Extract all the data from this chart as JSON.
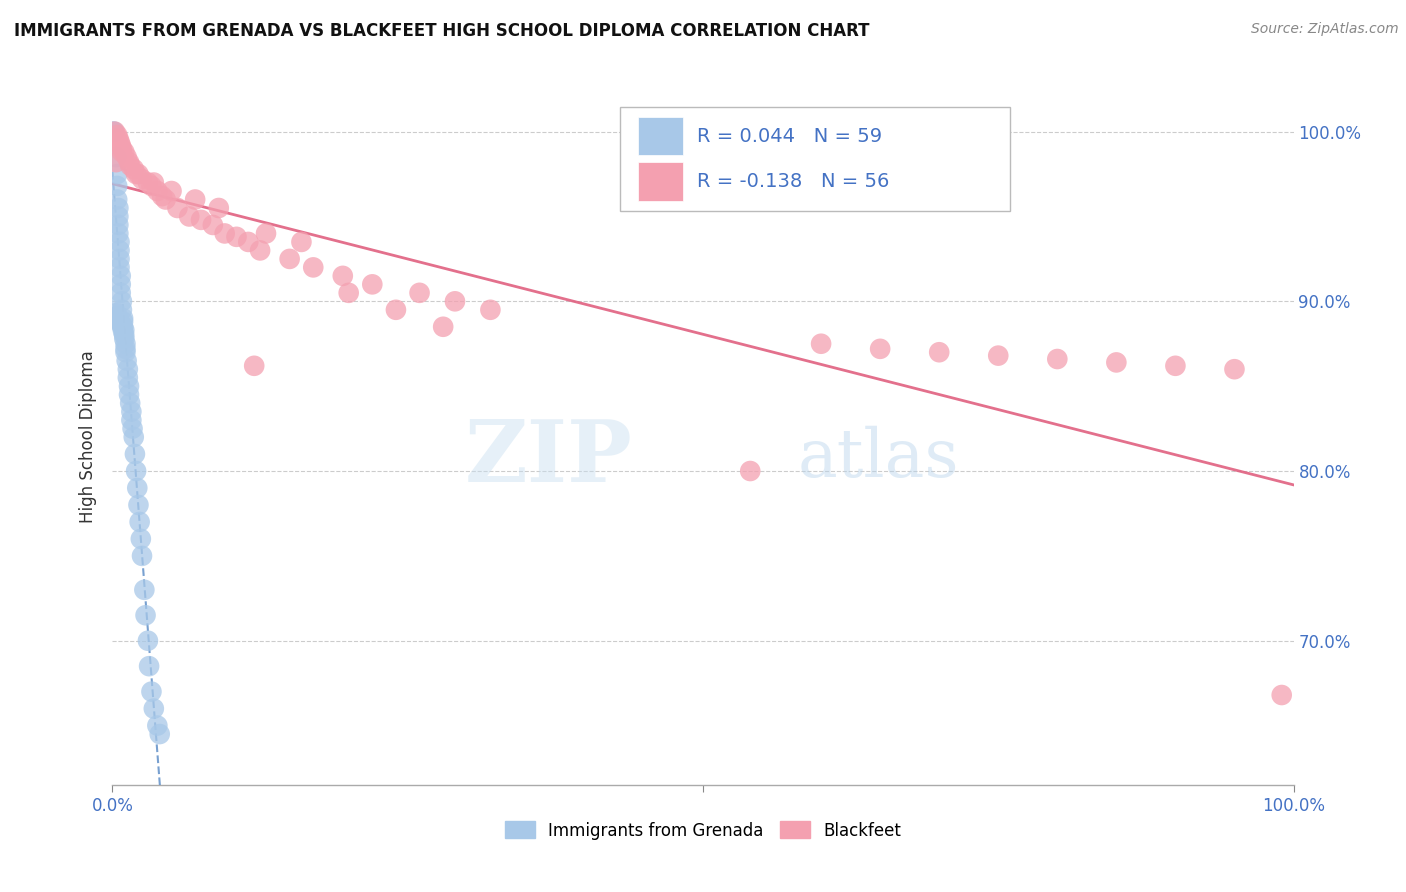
{
  "title": "IMMIGRANTS FROM GRENADA VS BLACKFEET HIGH SCHOOL DIPLOMA CORRELATION CHART",
  "source_text": "Source: ZipAtlas.com",
  "ylabel": "High School Diploma",
  "legend_blue_label": "Immigrants from Grenada",
  "legend_pink_label": "Blackfeet",
  "r_blue": 0.044,
  "n_blue": 59,
  "r_pink": -0.138,
  "n_pink": 56,
  "blue_color": "#a8c8e8",
  "pink_color": "#f4a0b0",
  "blue_line_color": "#6090c8",
  "pink_line_color": "#e06080",
  "watermark_color": "#d0e8f5",
  "blue_x": [
    0.001,
    0.001,
    0.003,
    0.004,
    0.004,
    0.004,
    0.005,
    0.005,
    0.005,
    0.005,
    0.006,
    0.006,
    0.006,
    0.006,
    0.007,
    0.007,
    0.007,
    0.008,
    0.008,
    0.009,
    0.009,
    0.009,
    0.009,
    0.01,
    0.01,
    0.011,
    0.011,
    0.011,
    0.012,
    0.013,
    0.013,
    0.014,
    0.014,
    0.015,
    0.016,
    0.016,
    0.017,
    0.018,
    0.019,
    0.02,
    0.021,
    0.022,
    0.023,
    0.024,
    0.025,
    0.027,
    0.028,
    0.03,
    0.031,
    0.033,
    0.035,
    0.038,
    0.04,
    0.003,
    0.004,
    0.005,
    0.007,
    0.008,
    0.01
  ],
  "blue_y": [
    1.0,
    1.0,
    0.985,
    0.975,
    0.968,
    0.96,
    0.955,
    0.95,
    0.945,
    0.94,
    0.935,
    0.93,
    0.925,
    0.92,
    0.915,
    0.91,
    0.905,
    0.9,
    0.895,
    0.89,
    0.888,
    0.885,
    0.882,
    0.88,
    0.878,
    0.875,
    0.872,
    0.87,
    0.865,
    0.86,
    0.855,
    0.85,
    0.845,
    0.84,
    0.835,
    0.83,
    0.825,
    0.82,
    0.81,
    0.8,
    0.79,
    0.78,
    0.77,
    0.76,
    0.75,
    0.73,
    0.715,
    0.7,
    0.685,
    0.67,
    0.66,
    0.65,
    0.645,
    0.893,
    0.891,
    0.889,
    0.887,
    0.885,
    0.883
  ],
  "pink_x": [
    0.002,
    0.004,
    0.005,
    0.006,
    0.007,
    0.008,
    0.01,
    0.012,
    0.014,
    0.018,
    0.022,
    0.025,
    0.03,
    0.033,
    0.038,
    0.042,
    0.045,
    0.055,
    0.065,
    0.075,
    0.085,
    0.095,
    0.105,
    0.115,
    0.125,
    0.15,
    0.17,
    0.195,
    0.22,
    0.26,
    0.29,
    0.32,
    0.015,
    0.02,
    0.035,
    0.05,
    0.07,
    0.09,
    0.13,
    0.16,
    0.2,
    0.24,
    0.28,
    0.6,
    0.65,
    0.7,
    0.75,
    0.8,
    0.85,
    0.9,
    0.95,
    0.003,
    0.008,
    0.12,
    0.54,
    0.99
  ],
  "pink_y": [
    1.0,
    0.998,
    0.996,
    0.994,
    0.992,
    0.99,
    0.988,
    0.985,
    0.982,
    0.978,
    0.975,
    0.972,
    0.97,
    0.968,
    0.965,
    0.962,
    0.96,
    0.955,
    0.95,
    0.948,
    0.945,
    0.94,
    0.938,
    0.935,
    0.93,
    0.925,
    0.92,
    0.915,
    0.91,
    0.905,
    0.9,
    0.895,
    0.98,
    0.975,
    0.97,
    0.965,
    0.96,
    0.955,
    0.94,
    0.935,
    0.905,
    0.895,
    0.885,
    0.875,
    0.872,
    0.87,
    0.868,
    0.866,
    0.864,
    0.862,
    0.86,
    0.982,
    0.988,
    0.862,
    0.8,
    0.668
  ],
  "xlim": [
    0.0,
    1.0
  ],
  "ylim": [
    0.615,
    1.025
  ],
  "yticks": [
    0.7,
    0.8,
    0.9,
    1.0
  ],
  "ytick_labels": [
    "70.0%",
    "80.0%",
    "90.0%",
    "100.0%"
  ]
}
